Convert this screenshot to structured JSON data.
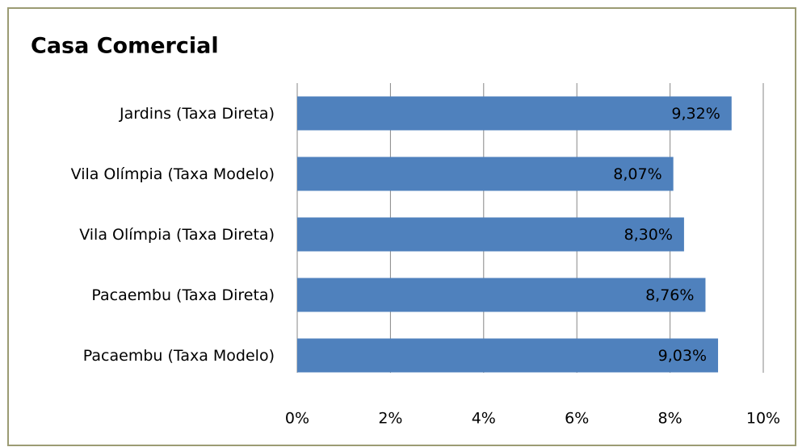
{
  "chart_data": {
    "type": "bar",
    "orientation": "horizontal",
    "title": "Casa Comercial",
    "categories": [
      "Jardins (Taxa Direta)",
      "Vila Olímpia (Taxa Modelo)",
      "Vila Olímpia (Taxa Direta)",
      "Pacaembu (Taxa Direta)",
      "Pacaembu (Taxa Modelo)"
    ],
    "values": [
      9.32,
      8.07,
      8.3,
      8.76,
      9.03
    ],
    "value_labels": [
      "9,32%",
      "8,07%",
      "8,30%",
      "8,76%",
      "9,03%"
    ],
    "color": "#4f81bd",
    "xlim": [
      0,
      10
    ],
    "xticks": [
      {
        "value": 0,
        "label": "0%"
      },
      {
        "value": 2,
        "label": "2%"
      },
      {
        "value": 4,
        "label": "4%"
      },
      {
        "value": 6,
        "label": "6%"
      },
      {
        "value": 8,
        "label": "8%"
      },
      {
        "value": 10,
        "label": "10%"
      }
    ],
    "grid": true
  }
}
